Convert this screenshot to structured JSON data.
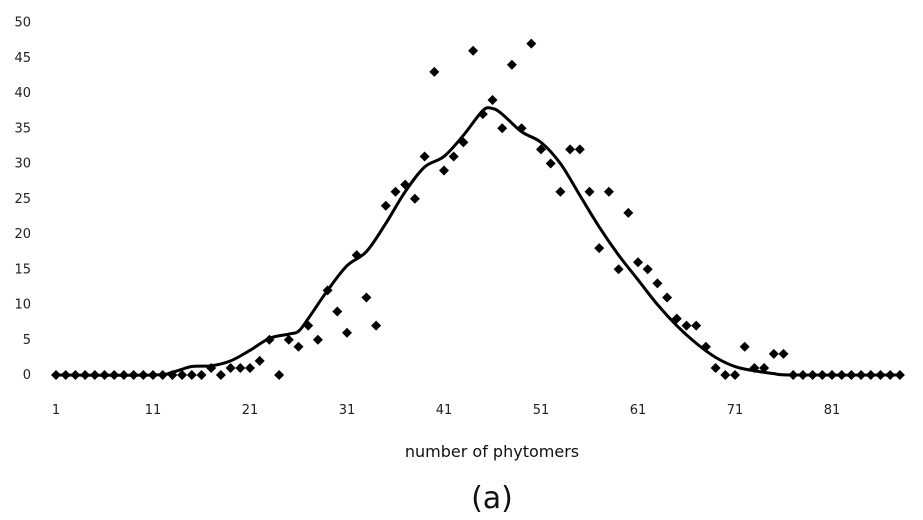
{
  "chart_data": {
    "type": "scatter",
    "title": "",
    "xlabel": "number of phytomers",
    "ylabel": "",
    "panel_label": "(a)",
    "xlim": [
      1,
      88
    ],
    "ylim": [
      0,
      50
    ],
    "x_ticks": [
      1,
      11,
      21,
      31,
      41,
      51,
      61,
      71,
      81
    ],
    "y_ticks": [
      0,
      5,
      10,
      15,
      20,
      25,
      30,
      35,
      40,
      45,
      50
    ],
    "grid": false,
    "legend": "none",
    "series": [
      {
        "kind": "scatter",
        "marker": "diamond",
        "color": "#000000",
        "points": [
          [
            1,
            0
          ],
          [
            2,
            0
          ],
          [
            3,
            0
          ],
          [
            4,
            0
          ],
          [
            5,
            0
          ],
          [
            6,
            0
          ],
          [
            7,
            0
          ],
          [
            8,
            0
          ],
          [
            9,
            0
          ],
          [
            10,
            0
          ],
          [
            11,
            0
          ],
          [
            12,
            0
          ],
          [
            13,
            0
          ],
          [
            14,
            0
          ],
          [
            15,
            0
          ],
          [
            16,
            0
          ],
          [
            17,
            1
          ],
          [
            18,
            0
          ],
          [
            19,
            1
          ],
          [
            20,
            1
          ],
          [
            21,
            1
          ],
          [
            22,
            2
          ],
          [
            23,
            5
          ],
          [
            24,
            0
          ],
          [
            25,
            5
          ],
          [
            26,
            4
          ],
          [
            27,
            7
          ],
          [
            28,
            5
          ],
          [
            29,
            12
          ],
          [
            30,
            9
          ],
          [
            31,
            6
          ],
          [
            32,
            17
          ],
          [
            33,
            11
          ],
          [
            34,
            7
          ],
          [
            35,
            24
          ],
          [
            36,
            26
          ],
          [
            37,
            27
          ],
          [
            38,
            25
          ],
          [
            39,
            31
          ],
          [
            40,
            43
          ],
          [
            41,
            29
          ],
          [
            42,
            31
          ],
          [
            43,
            33
          ],
          [
            44,
            46
          ],
          [
            45,
            37
          ],
          [
            46,
            39
          ],
          [
            47,
            35
          ],
          [
            48,
            44
          ],
          [
            49,
            35
          ],
          [
            50,
            47
          ],
          [
            51,
            32
          ],
          [
            52,
            30
          ],
          [
            53,
            26
          ],
          [
            54,
            32
          ],
          [
            55,
            32
          ],
          [
            56,
            26
          ],
          [
            57,
            18
          ],
          [
            58,
            26
          ],
          [
            59,
            15
          ],
          [
            60,
            23
          ],
          [
            61,
            16
          ],
          [
            62,
            15
          ],
          [
            63,
            13
          ],
          [
            64,
            11
          ],
          [
            65,
            8
          ],
          [
            66,
            7
          ],
          [
            67,
            7
          ],
          [
            68,
            4
          ],
          [
            69,
            1
          ],
          [
            70,
            0
          ],
          [
            71,
            0
          ],
          [
            72,
            4
          ],
          [
            73,
            1
          ],
          [
            74,
            1
          ],
          [
            75,
            3
          ],
          [
            76,
            3
          ],
          [
            77,
            0
          ],
          [
            78,
            0
          ],
          [
            79,
            0
          ],
          [
            80,
            0
          ],
          [
            81,
            0
          ],
          [
            82,
            0
          ],
          [
            83,
            0
          ],
          [
            84,
            0
          ],
          [
            85,
            0
          ],
          [
            86,
            0
          ],
          [
            87,
            0
          ],
          [
            88,
            0
          ]
        ]
      },
      {
        "kind": "line",
        "color": "#000000",
        "points": [
          [
            1,
            0
          ],
          [
            11,
            0
          ],
          [
            13,
            0.4
          ],
          [
            15,
            1.2
          ],
          [
            17,
            1.3
          ],
          [
            19,
            2
          ],
          [
            21,
            3.5
          ],
          [
            23,
            5.2
          ],
          [
            25,
            5.8
          ],
          [
            26,
            6.2
          ],
          [
            27,
            8
          ],
          [
            29,
            12
          ],
          [
            31,
            15.5
          ],
          [
            33,
            17.5
          ],
          [
            35,
            21.5
          ],
          [
            37,
            26
          ],
          [
            39,
            29.5
          ],
          [
            41,
            31
          ],
          [
            43,
            34
          ],
          [
            45,
            37.5
          ],
          [
            46,
            37.8
          ],
          [
            47,
            37
          ],
          [
            49,
            34.5
          ],
          [
            51,
            33
          ],
          [
            53,
            30
          ],
          [
            55,
            25.5
          ],
          [
            57,
            21
          ],
          [
            59,
            17
          ],
          [
            61,
            13.5
          ],
          [
            63,
            10
          ],
          [
            65,
            7
          ],
          [
            67,
            4.5
          ],
          [
            69,
            2.5
          ],
          [
            71,
            1.2
          ],
          [
            73,
            0.6
          ],
          [
            75,
            0.2
          ],
          [
            77,
            0
          ],
          [
            88,
            0
          ]
        ]
      }
    ]
  }
}
